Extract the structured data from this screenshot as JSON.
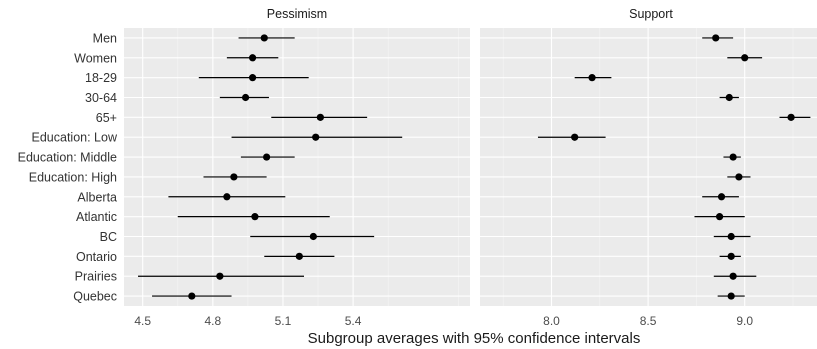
{
  "chart_data": {
    "type": "scatter",
    "subtype": "point-range",
    "xlabel": "Subgroup averages with 95% confidence intervals",
    "categories": [
      "Men",
      "Women",
      "18-29",
      "30-64",
      "65+",
      "Education: Low",
      "Education: Middle",
      "Education: High",
      "Alberta",
      "Atlantic",
      "BC",
      "Ontario",
      "Prairies",
      "Quebec"
    ],
    "panels": [
      {
        "title": "Pessimism",
        "xlim": [
          4.42,
          5.9
        ],
        "xticks": [
          "4.5",
          "4.8",
          "5.1",
          "5.4"
        ],
        "points": [
          {
            "category": "Men",
            "mean": 5.02,
            "lower": 4.91,
            "upper": 5.15
          },
          {
            "category": "Women",
            "mean": 4.97,
            "lower": 4.86,
            "upper": 5.08
          },
          {
            "category": "18-29",
            "mean": 4.97,
            "lower": 4.74,
            "upper": 5.21
          },
          {
            "category": "30-64",
            "mean": 4.94,
            "lower": 4.83,
            "upper": 5.04
          },
          {
            "category": "65+",
            "mean": 5.26,
            "lower": 5.05,
            "upper": 5.46
          },
          {
            "category": "Education: Low",
            "mean": 5.24,
            "lower": 4.88,
            "upper": 5.61
          },
          {
            "category": "Education: Middle",
            "mean": 5.03,
            "lower": 4.92,
            "upper": 5.15
          },
          {
            "category": "Education: High",
            "mean": 4.89,
            "lower": 4.76,
            "upper": 5.03
          },
          {
            "category": "Alberta",
            "mean": 4.86,
            "lower": 4.61,
            "upper": 5.11
          },
          {
            "category": "Atlantic",
            "mean": 4.98,
            "lower": 4.65,
            "upper": 5.3
          },
          {
            "category": "BC",
            "mean": 5.23,
            "lower": 4.96,
            "upper": 5.49
          },
          {
            "category": "Ontario",
            "mean": 5.17,
            "lower": 5.02,
            "upper": 5.32
          },
          {
            "category": "Prairies",
            "mean": 4.83,
            "lower": 4.48,
            "upper": 5.19
          },
          {
            "category": "Quebec",
            "mean": 4.71,
            "lower": 4.54,
            "upper": 4.88
          }
        ]
      },
      {
        "title": "Support",
        "xlim": [
          7.63,
          9.4
        ],
        "xticks": [
          "8.0",
          "8.5",
          "9.0"
        ],
        "points": [
          {
            "category": "Men",
            "mean": 8.85,
            "lower": 8.78,
            "upper": 8.94
          },
          {
            "category": "Women",
            "mean": 9.0,
            "lower": 8.91,
            "upper": 9.09
          },
          {
            "category": "18-29",
            "mean": 8.21,
            "lower": 8.12,
            "upper": 8.31
          },
          {
            "category": "30-64",
            "mean": 8.92,
            "lower": 8.87,
            "upper": 8.97
          },
          {
            "category": "65+",
            "mean": 9.24,
            "lower": 9.18,
            "upper": 9.34
          },
          {
            "category": "Education: Low",
            "mean": 8.12,
            "lower": 7.93,
            "upper": 8.28
          },
          {
            "category": "Education: Middle",
            "mean": 8.94,
            "lower": 8.89,
            "upper": 8.98
          },
          {
            "category": "Education: High",
            "mean": 8.97,
            "lower": 8.91,
            "upper": 9.03
          },
          {
            "category": "Alberta",
            "mean": 8.88,
            "lower": 8.78,
            "upper": 8.97
          },
          {
            "category": "Atlantic",
            "mean": 8.87,
            "lower": 8.74,
            "upper": 9.0
          },
          {
            "category": "BC",
            "mean": 8.93,
            "lower": 8.84,
            "upper": 9.03
          },
          {
            "category": "Ontario",
            "mean": 8.93,
            "lower": 8.87,
            "upper": 8.98
          },
          {
            "category": "Prairies",
            "mean": 8.94,
            "lower": 8.84,
            "upper": 9.06
          },
          {
            "category": "Quebec",
            "mean": 8.93,
            "lower": 8.86,
            "upper": 9.0
          }
        ]
      }
    ],
    "grid": true,
    "legend": "none"
  }
}
